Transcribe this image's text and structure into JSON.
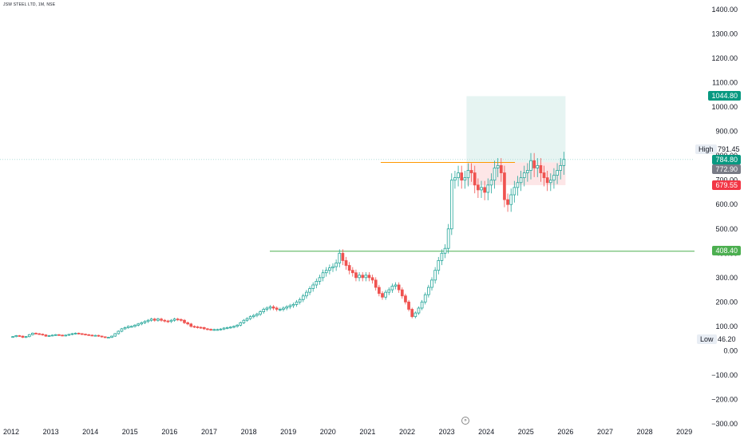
{
  "header": {
    "ticker": "JSW STEEL LTD, 1M, NSE"
  },
  "y_ticks": [
    "1400.00",
    "1300.00",
    "1200.00",
    "1100.00",
    "1000.00",
    "900.00",
    "800.00",
    "700.00",
    "600.00",
    "500.00",
    "400.00",
    "300.00",
    "200.00",
    "100.00",
    "0.00",
    "−100.00",
    "−200.00",
    "−300.00"
  ],
  "x_ticks": [
    "2012",
    "2013",
    "2014",
    "2015",
    "2016",
    "2017",
    "2018",
    "2019",
    "2020",
    "2021",
    "2022",
    "2023",
    "2024",
    "2025",
    "2026",
    "2027",
    "2028",
    "2029"
  ],
  "tags": {
    "target": "1044.80",
    "current": "784.80",
    "entry": "772.90",
    "stop": "679.55",
    "support": "408.40"
  },
  "extremes": {
    "high_label": "High",
    "high_value": "791.45",
    "low_label": "Low",
    "low_value": "46.20"
  },
  "colors": {
    "up": "#26a69a",
    "down": "#ef5350",
    "support": "#4caf50",
    "resistance": "#ff9800",
    "target_zone": "#e6f4f2",
    "stop_zone": "#fde6e7"
  },
  "chart_data": {
    "type": "candlestick",
    "title": "JSW STEEL LTD, 1M, NSE",
    "ylim": [
      -300,
      1400
    ],
    "x_range": [
      "2012-01",
      "2029-06"
    ],
    "horizontal_lines": [
      {
        "name": "support",
        "value": 408.4
      },
      {
        "name": "resistance",
        "value": 772.9,
        "from": "2021-05",
        "to": "2023-12"
      }
    ],
    "position": {
      "entry": 772.9,
      "target": 1044.8,
      "stop": 679.55,
      "from": "2023-07",
      "to": "2026-01"
    },
    "series": [
      {
        "name": "close",
        "x_start": "2012-01",
        "freq": "monthly",
        "values": [
          58,
          62,
          60,
          55,
          58,
          66,
          72,
          70,
          68,
          65,
          60,
          62,
          64,
          66,
          64,
          62,
          64,
          67,
          70,
          72,
          70,
          68,
          66,
          64,
          62,
          63,
          60,
          57,
          55,
          55,
          60,
          70,
          80,
          90,
          95,
          100,
          100,
          105,
          110,
          115,
          120,
          125,
          130,
          125,
          130,
          125,
          122,
          120,
          125,
          130,
          128,
          125,
          115,
          110,
          100,
          98,
          96,
          95,
          90,
          88,
          86,
          87,
          87,
          89,
          93,
          95,
          97,
          100,
          105,
          115,
          125,
          132,
          140,
          145,
          150,
          160,
          170,
          175,
          180,
          175,
          170,
          170,
          175,
          180,
          185,
          190,
          200,
          210,
          225,
          240,
          255,
          270,
          285,
          300,
          320,
          330,
          340,
          345,
          360,
          400,
          370,
          350,
          330,
          320,
          300,
          310,
          300,
          310,
          300,
          290,
          260,
          235,
          220,
          240,
          250,
          265,
          270,
          250,
          225,
          200,
          170,
          140,
          155,
          175,
          200,
          230,
          260,
          290,
          330,
          370,
          400,
          420,
          500,
          700,
          710,
          730,
          700,
          710,
          740,
          730,
          680,
          660,
          670,
          650,
          680,
          700,
          750,
          760,
          730,
          620,
          600,
          640,
          670,
          690,
          710,
          730,
          740,
          780,
          750,
          760,
          730,
          710,
          690,
          700,
          720,
          740,
          760,
          785
        ]
      }
    ]
  }
}
